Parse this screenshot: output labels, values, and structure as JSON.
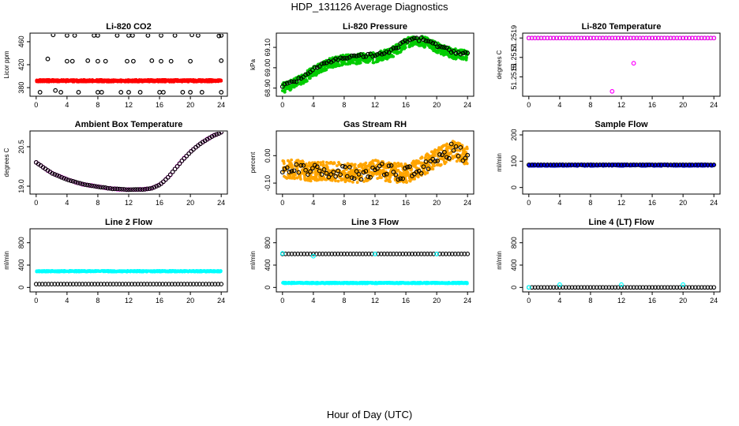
{
  "page": {
    "title": "HDP_131126  Average Diagnostics",
    "x_axis_title": "Hour of Day (UTC)"
  },
  "colors": {
    "black": "#000000",
    "red": "#ff0000",
    "green": "#00cc00",
    "magenta": "#ff00ff",
    "orange": "#ffa500",
    "blue": "#0000ff",
    "cyan": "#00ffff"
  },
  "chart_data": [
    {
      "type": "scatter",
      "title": "Li-820 CO2",
      "ylabel": "Licor ppm",
      "xlim": [
        -0.8,
        24.8
      ],
      "ylim": [
        365,
        475
      ],
      "xticks": [
        0,
        4,
        8,
        12,
        16,
        20,
        24
      ],
      "yticks": [
        380,
        420,
        460
      ],
      "ytick_labels": [
        "380",
        "420",
        "460"
      ],
      "series": [
        {
          "name": "band",
          "color": "red",
          "style": "band",
          "x_range": [
            0,
            24
          ],
          "center": 392,
          "spread": 2
        },
        {
          "name": "hourly-high",
          "color": "black",
          "style": "open",
          "x": [
            2.2,
            4.0,
            5.0,
            7.5,
            8.0,
            10.5,
            12.0,
            12.5,
            14.5,
            16.2,
            18.0,
            20.2,
            21.0,
            23.7,
            24.0
          ],
          "y": [
            472,
            471,
            471,
            471,
            471,
            471,
            471,
            471,
            471,
            471,
            471,
            472,
            471,
            470,
            471
          ]
        },
        {
          "name": "hourly-mid",
          "color": "black",
          "style": "open",
          "x": [
            1.5,
            4.0,
            4.7,
            6.7,
            8.0,
            9.0,
            11.8,
            12.6,
            15.0,
            16.2,
            17.5,
            20.0,
            24.0
          ],
          "y": [
            430,
            426,
            426,
            427,
            426,
            426,
            426,
            426,
            427,
            426,
            426,
            426,
            427
          ]
        },
        {
          "name": "hourly-low",
          "color": "black",
          "style": "open",
          "x": [
            0.5,
            2.5,
            3.2,
            5.5,
            8.0,
            8.5,
            11.0,
            12.0,
            13.5,
            16.0,
            16.5,
            19.0,
            20.0,
            21.5,
            24.0
          ],
          "y": [
            372,
            375,
            372,
            372,
            372,
            372,
            372,
            372,
            372,
            372,
            372,
            372,
            372,
            372,
            372
          ]
        }
      ]
    },
    {
      "type": "scatter",
      "title": "Li-820 Pressure",
      "ylabel": "kPa",
      "xlim": [
        -0.8,
        24.8
      ],
      "ylim": [
        68.86,
        69.17
      ],
      "xticks": [
        0,
        4,
        8,
        12,
        16,
        20,
        24
      ],
      "yticks": [
        68.9,
        69.0,
        69.1
      ],
      "ytick_labels": [
        "68.90",
        "69.00",
        "69.10"
      ],
      "series": [
        {
          "name": "green-band",
          "color": "green",
          "style": "band-curve",
          "spread": 0.025,
          "x": [
            0,
            2,
            4,
            6,
            8,
            10,
            12,
            14,
            16,
            17,
            18,
            19,
            20,
            22,
            24
          ],
          "y": [
            68.9,
            68.93,
            68.98,
            69.02,
            69.04,
            69.045,
            69.05,
            69.07,
            69.12,
            69.13,
            69.13,
            69.12,
            69.1,
            69.07,
            69.06
          ]
        },
        {
          "name": "black-curve",
          "color": "black",
          "style": "curve-open",
          "noise": 0.008,
          "x": [
            0,
            2,
            4,
            6,
            8,
            10,
            12,
            14,
            16,
            17,
            18,
            19,
            20,
            22,
            24
          ],
          "y": [
            68.91,
            68.94,
            68.99,
            69.03,
            69.05,
            69.06,
            69.06,
            69.08,
            69.13,
            69.14,
            69.14,
            69.13,
            69.11,
            69.08,
            69.07
          ]
        }
      ]
    },
    {
      "type": "scatter",
      "title": "Li-820 Temperature",
      "ylabel": "degrees C",
      "xlim": [
        -0.8,
        24.8
      ],
      "ylim": [
        51.2513,
        51.25195
      ],
      "xticks": [
        0,
        4,
        8,
        12,
        16,
        20,
        24
      ],
      "yticks": [
        51.2515,
        51.2517,
        51.2519
      ],
      "ytick_labels": [
        "51.2515",
        "51.2517",
        "51.2519"
      ],
      "series": [
        {
          "name": "line",
          "color": "black",
          "style": "flat-open",
          "x_range": [
            0,
            24
          ],
          "value": 51.2519
        },
        {
          "name": "magenta",
          "color": "magenta",
          "style": "flat-open",
          "x_range": [
            0,
            24
          ],
          "value": 51.2519
        },
        {
          "name": "outliers",
          "color": "magenta",
          "style": "open",
          "x": [
            10.8,
            13.6
          ],
          "y": [
            51.25135,
            51.25164
          ]
        }
      ]
    },
    {
      "type": "scatter",
      "title": "Ambient Box Temperature",
      "ylabel": "degrees C",
      "xlim": [
        -0.8,
        24.8
      ],
      "ylim": [
        18.7,
        21.1
      ],
      "xticks": [
        0,
        4,
        8,
        12,
        16,
        20,
        24
      ],
      "yticks": [
        19.0,
        20.5
      ],
      "ytick_labels": [
        "19.0",
        "20.5"
      ],
      "series": [
        {
          "name": "magenta",
          "color": "magenta",
          "style": "curve-open",
          "noise": 0.01,
          "x": [
            0,
            1,
            2,
            4,
            6,
            8,
            10,
            12,
            14,
            15,
            16,
            17,
            18,
            19,
            20,
            21,
            22,
            23,
            24
          ],
          "y": [
            19.9,
            19.7,
            19.5,
            19.25,
            19.08,
            18.98,
            18.9,
            18.87,
            18.88,
            18.92,
            19.05,
            19.3,
            19.65,
            20.0,
            20.3,
            20.55,
            20.75,
            20.92,
            21.05
          ]
        },
        {
          "name": "black",
          "color": "black",
          "style": "curve-open",
          "noise": 0.005,
          "x": [
            0,
            1,
            2,
            4,
            6,
            8,
            10,
            12,
            14,
            15,
            16,
            17,
            18,
            19,
            20,
            21,
            22,
            23,
            24
          ],
          "y": [
            19.9,
            19.7,
            19.5,
            19.25,
            19.08,
            18.98,
            18.9,
            18.87,
            18.88,
            18.92,
            19.05,
            19.3,
            19.65,
            20.0,
            20.3,
            20.55,
            20.75,
            20.92,
            21.05
          ]
        }
      ]
    },
    {
      "type": "scatter",
      "title": "Gas Stream RH",
      "ylabel": "percent",
      "xlim": [
        -0.8,
        24.8
      ],
      "ylim": [
        -0.14,
        0.09
      ],
      "xticks": [
        0,
        4,
        8,
        12,
        16,
        20,
        24
      ],
      "yticks": [
        -0.1,
        0.0
      ],
      "ytick_labels": [
        "-0.10",
        "0.00"
      ],
      "series": [
        {
          "name": "orange-band",
          "color": "orange",
          "style": "band-curve",
          "spread": 0.035,
          "x": [
            0,
            2,
            4,
            6,
            8,
            10,
            12,
            14,
            16,
            18,
            20,
            22,
            24
          ],
          "y": [
            -0.05,
            -0.05,
            -0.06,
            -0.055,
            -0.06,
            -0.065,
            -0.05,
            -0.06,
            -0.065,
            -0.04,
            -0.01,
            0.02,
            0.0
          ]
        },
        {
          "name": "black-points",
          "color": "black",
          "style": "curve-open",
          "noise": 0.025,
          "x": [
            0,
            2,
            4,
            6,
            8,
            10,
            12,
            14,
            16,
            18,
            20,
            22,
            24
          ],
          "y": [
            -0.05,
            -0.05,
            -0.06,
            -0.055,
            -0.06,
            -0.065,
            -0.05,
            -0.06,
            -0.065,
            -0.04,
            -0.01,
            0.02,
            0.0
          ]
        }
      ]
    },
    {
      "type": "scatter",
      "title": "Sample Flow",
      "ylabel": "ml/min",
      "xlim": [
        -0.8,
        24.8
      ],
      "ylim": [
        -25,
        215
      ],
      "xticks": [
        0,
        4,
        8,
        12,
        16,
        20,
        24
      ],
      "yticks": [
        0,
        100,
        200
      ],
      "ytick_labels": [
        "0",
        "100",
        "200"
      ],
      "series": [
        {
          "name": "blue-band",
          "color": "blue",
          "style": "band",
          "x_range": [
            0,
            24
          ],
          "center": 85,
          "spread": 4
        },
        {
          "name": "black",
          "color": "black",
          "style": "flat-open",
          "x_range": [
            0,
            24
          ],
          "value": 86
        }
      ]
    },
    {
      "type": "scatter",
      "title": "Line 2 Flow",
      "ylabel": "ml/min",
      "xlim": [
        -0.8,
        24.8
      ],
      "ylim": [
        -80,
        1050
      ],
      "xticks": [
        0,
        4,
        8,
        12,
        16,
        20,
        24
      ],
      "yticks": [
        0,
        400,
        800
      ],
      "ytick_labels": [
        "0",
        "400",
        "800"
      ],
      "series": [
        {
          "name": "cyan-band",
          "color": "cyan",
          "style": "band",
          "x_range": [
            0,
            24
          ],
          "center": 290,
          "spread": 12
        },
        {
          "name": "black",
          "color": "black",
          "style": "flat-open",
          "x_range": [
            0,
            24
          ],
          "value": 60
        }
      ]
    },
    {
      "type": "scatter",
      "title": "Line 3 Flow",
      "ylabel": "ml/min",
      "xlim": [
        -0.8,
        24.8
      ],
      "ylim": [
        -80,
        1050
      ],
      "xticks": [
        0,
        4,
        8,
        12,
        16,
        20,
        24
      ],
      "yticks": [
        0,
        400,
        800
      ],
      "ytick_labels": [
        "0",
        "400",
        "800"
      ],
      "series": [
        {
          "name": "cyan-band",
          "color": "cyan",
          "style": "band",
          "x_range": [
            0,
            24
          ],
          "center": 80,
          "spread": 12
        },
        {
          "name": "black",
          "color": "black",
          "style": "flat-open",
          "x_range": [
            0,
            24
          ],
          "value": 600
        },
        {
          "name": "cyan-points",
          "color": "cyan",
          "style": "open",
          "x": [
            0,
            4,
            12,
            20
          ],
          "y": [
            610,
            560,
            600,
            600
          ]
        }
      ]
    },
    {
      "type": "scatter",
      "title": "Line 4 (LT) Flow",
      "ylabel": "ml/min",
      "xlim": [
        -0.8,
        24.8
      ],
      "ylim": [
        -80,
        1050
      ],
      "xticks": [
        0,
        4,
        8,
        12,
        16,
        20,
        24
      ],
      "yticks": [
        0,
        400,
        800
      ],
      "ytick_labels": [
        "0",
        "400",
        "800"
      ],
      "series": [
        {
          "name": "black",
          "color": "black",
          "style": "flat-open",
          "x_range": [
            0,
            24
          ],
          "value": 0
        },
        {
          "name": "cyan-points",
          "color": "cyan",
          "style": "open",
          "x": [
            0,
            4,
            12,
            20
          ],
          "y": [
            0,
            50,
            50,
            50
          ]
        }
      ]
    }
  ]
}
